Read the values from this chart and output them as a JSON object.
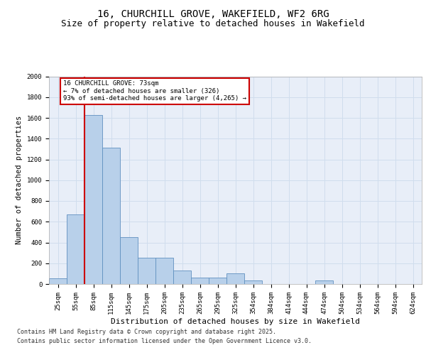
{
  "title_line1": "16, CHURCHILL GROVE, WAKEFIELD, WF2 6RG",
  "title_line2": "Size of property relative to detached houses in Wakefield",
  "xlabel": "Distribution of detached houses by size in Wakefield",
  "ylabel": "Number of detached properties",
  "categories": [
    "25sqm",
    "55sqm",
    "85sqm",
    "115sqm",
    "145sqm",
    "175sqm",
    "205sqm",
    "235sqm",
    "265sqm",
    "295sqm",
    "325sqm",
    "354sqm",
    "384sqm",
    "414sqm",
    "444sqm",
    "474sqm",
    "504sqm",
    "534sqm",
    "564sqm",
    "594sqm",
    "624sqm"
  ],
  "values": [
    55,
    670,
    1630,
    1310,
    450,
    250,
    250,
    130,
    60,
    60,
    100,
    35,
    0,
    0,
    0,
    35,
    0,
    0,
    0,
    0,
    0
  ],
  "bar_color": "#b8d0ea",
  "bar_edge_color": "#6090c0",
  "vline_color": "#cc0000",
  "vline_pos": 1.5,
  "annotation_text": "16 CHURCHILL GROVE: 73sqm\n← 7% of detached houses are smaller (326)\n93% of semi-detached houses are larger (4,265) →",
  "annotation_box_edgecolor": "#cc0000",
  "ylim": [
    0,
    2000
  ],
  "yticks": [
    0,
    200,
    400,
    600,
    800,
    1000,
    1200,
    1400,
    1600,
    1800,
    2000
  ],
  "grid_color": "#d0dded",
  "bg_color": "#e8eef8",
  "footer_line1": "Contains HM Land Registry data © Crown copyright and database right 2025.",
  "footer_line2": "Contains public sector information licensed under the Open Government Licence v3.0.",
  "title_fontsize": 10,
  "subtitle_fontsize": 9,
  "axis_label_fontsize": 7.5,
  "tick_fontsize": 6.5,
  "annotation_fontsize": 6.5,
  "footer_fontsize": 6.0
}
